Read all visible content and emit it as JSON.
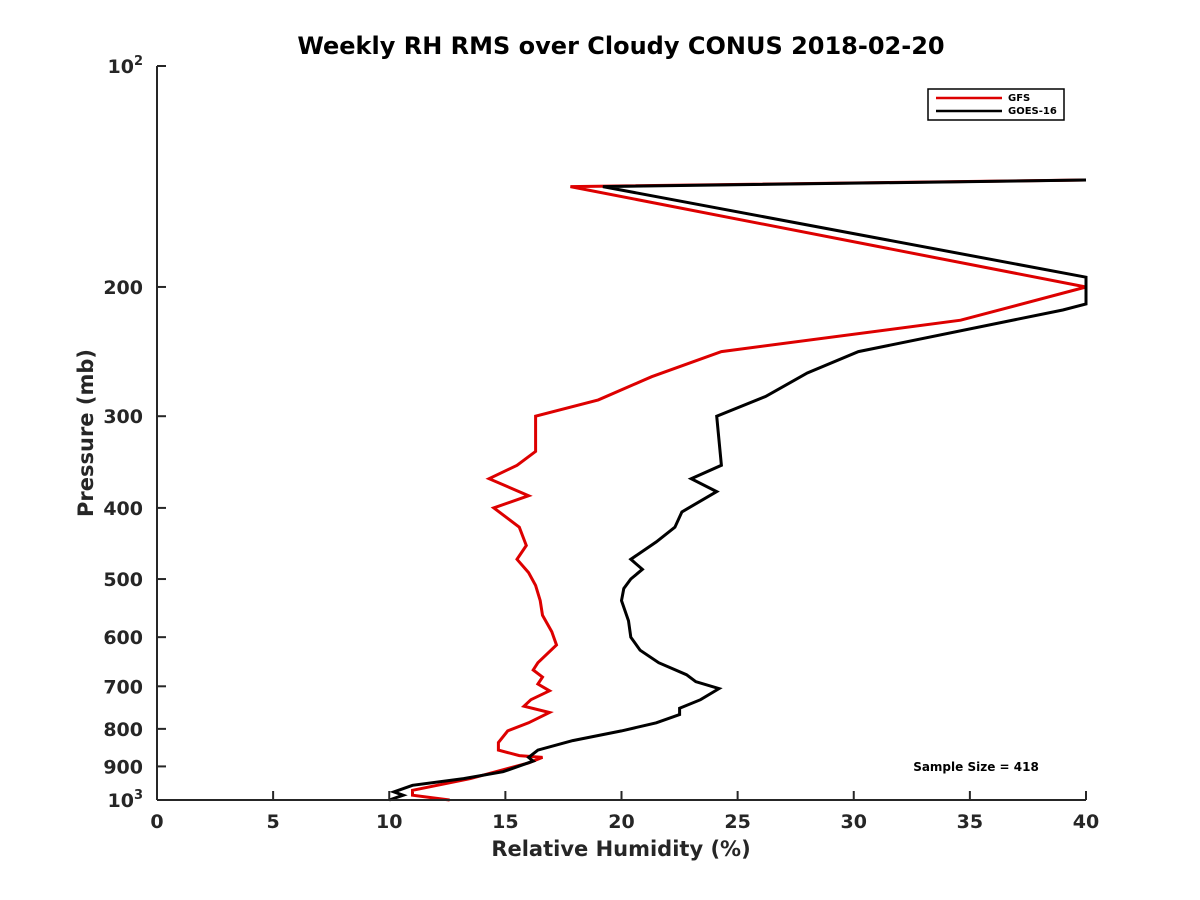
{
  "chart_data": {
    "type": "line",
    "title": "Weekly RH RMS over Cloudy CONUS 2018-02-20",
    "xlabel": "Relative Humidity (%)",
    "ylabel": "Pressure (mb)",
    "xlim": [
      0,
      40
    ],
    "ylim": [
      100,
      1000
    ],
    "y_scale": "log",
    "y_reversed": true,
    "x_ticks": [
      0,
      5,
      10,
      15,
      20,
      25,
      30,
      35,
      40
    ],
    "x_tick_labels": [
      "0",
      "5",
      "10",
      "15",
      "20",
      "25",
      "30",
      "35",
      "40"
    ],
    "y_ticks": [
      {
        "value": 100,
        "base": "10",
        "exp": "2"
      },
      {
        "value": 200,
        "label": "200"
      },
      {
        "value": 300,
        "label": "300"
      },
      {
        "value": 400,
        "label": "400"
      },
      {
        "value": 500,
        "label": "500"
      },
      {
        "value": 600,
        "label": "600"
      },
      {
        "value": 700,
        "label": "700"
      },
      {
        "value": 800,
        "label": "800"
      },
      {
        "value": 900,
        "label": "900"
      },
      {
        "value": 1000,
        "base": "10",
        "exp": "3"
      }
    ],
    "grid": false,
    "legend_position": "top-right",
    "annotation": "Sample Size = 418",
    "series": [
      {
        "name": "GFS",
        "color": "#dd0000",
        "points": [
          [
            12.6,
            1000
          ],
          [
            11.0,
            985
          ],
          [
            11.0,
            970
          ],
          [
            13.5,
            935
          ],
          [
            16.0,
            890
          ],
          [
            16.6,
            875
          ],
          [
            15.6,
            870
          ],
          [
            14.7,
            855
          ],
          [
            14.7,
            835
          ],
          [
            15.1,
            805
          ],
          [
            16.0,
            785
          ],
          [
            16.9,
            760
          ],
          [
            15.8,
            745
          ],
          [
            16.1,
            730
          ],
          [
            16.9,
            710
          ],
          [
            16.4,
            695
          ],
          [
            16.6,
            680
          ],
          [
            16.2,
            665
          ],
          [
            16.4,
            650
          ],
          [
            17.2,
            615
          ],
          [
            17.0,
            590
          ],
          [
            16.6,
            560
          ],
          [
            16.5,
            535
          ],
          [
            16.3,
            510
          ],
          [
            16.0,
            490
          ],
          [
            15.5,
            470
          ],
          [
            15.9,
            450
          ],
          [
            15.6,
            425
          ],
          [
            14.5,
            400
          ],
          [
            16.0,
            385
          ],
          [
            14.3,
            365
          ],
          [
            15.5,
            350
          ],
          [
            16.3,
            335
          ],
          [
            16.3,
            300
          ],
          [
            19.0,
            285
          ],
          [
            21.3,
            265
          ],
          [
            24.3,
            245
          ],
          [
            34.6,
            222
          ],
          [
            40.0,
            200
          ],
          [
            17.8,
            146
          ],
          [
            40.0,
            143
          ]
        ]
      },
      {
        "name": "GOES-16",
        "color": "#000000",
        "points": [
          [
            10.0,
            1000
          ],
          [
            10.6,
            985
          ],
          [
            10.2,
            975
          ],
          [
            11.0,
            955
          ],
          [
            13.2,
            935
          ],
          [
            14.9,
            915
          ],
          [
            16.2,
            885
          ],
          [
            16.0,
            875
          ],
          [
            16.4,
            855
          ],
          [
            17.9,
            830
          ],
          [
            20.0,
            805
          ],
          [
            21.5,
            785
          ],
          [
            22.5,
            765
          ],
          [
            22.5,
            750
          ],
          [
            23.4,
            730
          ],
          [
            24.2,
            705
          ],
          [
            23.2,
            690
          ],
          [
            22.8,
            675
          ],
          [
            21.6,
            650
          ],
          [
            20.8,
            625
          ],
          [
            20.4,
            600
          ],
          [
            20.3,
            570
          ],
          [
            20.0,
            535
          ],
          [
            20.1,
            515
          ],
          [
            20.4,
            500
          ],
          [
            20.9,
            485
          ],
          [
            20.4,
            470
          ],
          [
            21.5,
            445
          ],
          [
            22.3,
            425
          ],
          [
            22.6,
            405
          ],
          [
            24.1,
            380
          ],
          [
            23.0,
            365
          ],
          [
            24.3,
            350
          ],
          [
            24.1,
            300
          ],
          [
            26.2,
            282
          ],
          [
            28.0,
            262
          ],
          [
            30.2,
            245
          ],
          [
            39.0,
            215
          ],
          [
            40.0,
            211
          ],
          [
            40.0,
            194
          ],
          [
            19.2,
            146
          ],
          [
            40.0,
            143
          ]
        ]
      }
    ]
  }
}
